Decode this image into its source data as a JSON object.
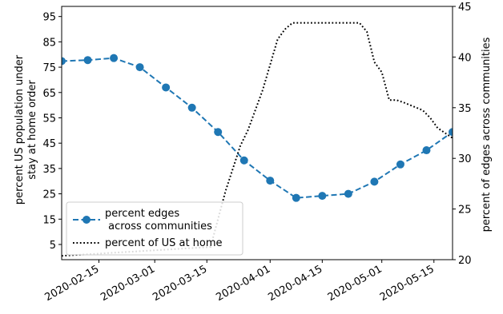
{
  "chart_data": {
    "type": "line",
    "xlabel": "",
    "ylabel_left": "percent US population under\nstay at home order",
    "ylabel_right": "percent of edges across communities",
    "ylim_left": [
      -1,
      99
    ],
    "yticks_left": [
      5,
      15,
      25,
      35,
      45,
      55,
      65,
      75,
      85,
      95
    ],
    "ylim_right": [
      20,
      45
    ],
    "yticks_right": [
      20,
      25,
      30,
      35,
      40,
      45
    ],
    "xlim": [
      "2020-02-05",
      "2020-05-20"
    ],
    "xticks": [
      "2020-02-15",
      "2020-03-01",
      "2020-03-15",
      "2020-04-01",
      "2020-04-15",
      "2020-05-01",
      "2020-05-15"
    ],
    "legend_position": "lower-left",
    "series": [
      {
        "name": "percent edges\n across communities",
        "axis": "right",
        "color": "#1f77b4",
        "linestyle": "dashed",
        "marker": "circle",
        "x": [
          "2020-02-05",
          "2020-02-12",
          "2020-02-19",
          "2020-02-26",
          "2020-03-04",
          "2020-03-11",
          "2020-03-18",
          "2020-03-25",
          "2020-04-01",
          "2020-04-08",
          "2020-04-15",
          "2020-04-22",
          "2020-04-29",
          "2020-05-06",
          "2020-05-13",
          "2020-05-20"
        ],
        "values": [
          39.6,
          39.7,
          39.9,
          39.0,
          37.0,
          35.0,
          32.6,
          29.8,
          27.8,
          26.1,
          26.3,
          26.5,
          27.7,
          29.4,
          30.8,
          32.6
        ]
      },
      {
        "name": "percent of US at home",
        "axis": "left",
        "color": "#000000",
        "linestyle": "dotted",
        "marker": "none",
        "x": [
          "2020-02-05",
          "2020-03-16",
          "2020-03-18",
          "2020-03-20",
          "2020-03-22",
          "2020-03-24",
          "2020-03-26",
          "2020-03-28",
          "2020-03-30",
          "2020-04-01",
          "2020-04-03",
          "2020-04-05",
          "2020-04-07",
          "2020-04-25",
          "2020-04-27",
          "2020-04-29",
          "2020-05-01",
          "2020-05-03",
          "2020-05-05",
          "2020-05-07",
          "2020-05-12",
          "2020-05-14",
          "2020-05-16",
          "2020-05-18",
          "2020-05-20"
        ],
        "values": [
          0.5,
          4,
          15,
          26,
          35,
          44,
          50,
          58,
          66,
          76,
          86,
          90,
          92.5,
          92.5,
          89,
          77,
          73,
          62,
          62,
          61,
          58,
          55,
          51,
          49,
          47
        ]
      }
    ]
  }
}
